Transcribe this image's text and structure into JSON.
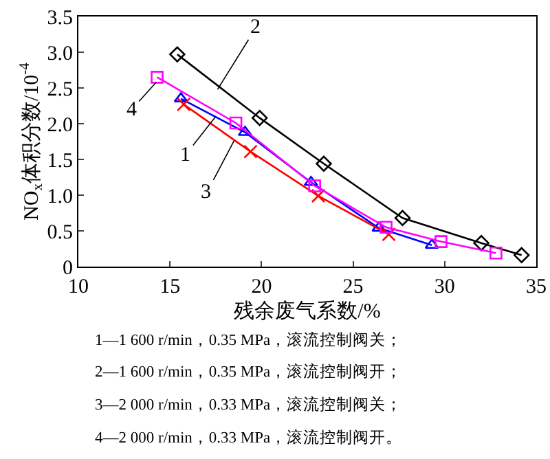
{
  "chart_data": {
    "type": "line",
    "xlabel": "残余废气系数/%",
    "ylabel": "NO$_{x}$体积分数/10$^{-4}$",
    "xlim": [
      10,
      35
    ],
    "xticks": [
      10,
      15,
      20,
      25,
      30,
      35
    ],
    "ylim": [
      0,
      3.5
    ],
    "yticks": [
      0,
      {
        "value": 0.5,
        "label": "0.5"
      },
      {
        "value": 1,
        "label": "1.0"
      },
      {
        "value": 1.5,
        "label": "1.5"
      },
      {
        "value": 2,
        "label": "2.0"
      },
      {
        "value": 2.5,
        "label": "2.5"
      },
      {
        "value": 3,
        "label": "3.0"
      },
      {
        "value": 3.5,
        "label": "3.5"
      }
    ],
    "grid": false,
    "series": [
      {
        "color": "#0000ff",
        "marker": "triangle",
        "x": [
          15.6,
          19.1,
          22.7,
          26.4,
          29.3
        ],
        "values": [
          2.35,
          1.88,
          1.18,
          0.54,
          0.3
        ]
      },
      {
        "color": "#000000",
        "marker": "diamond",
        "x": [
          15.4,
          19.9,
          23.4,
          27.7,
          32.0,
          34.2
        ],
        "values": [
          2.97,
          2.08,
          1.44,
          0.68,
          0.33,
          0.16
        ]
      },
      {
        "color": "#ff0000",
        "marker": "cross",
        "x": [
          15.75,
          19.4,
          23.1,
          26.95
        ],
        "values": [
          2.27,
          1.61,
          0.99,
          0.45
        ]
      },
      {
        "color": "#ff00ff",
        "marker": "square",
        "x": [
          14.3,
          18.6,
          22.9,
          26.8,
          29.8,
          32.8
        ],
        "values": [
          2.65,
          2.01,
          1.13,
          0.55,
          0.35,
          0.19
        ]
      }
    ],
    "annotations": [
      {
        "text": "1",
        "x": 17.5,
        "y": 2.1
      },
      {
        "text": "2",
        "x": 17.6,
        "y": 2.48
      },
      {
        "text": "3",
        "x": 18.5,
        "y": 1.76
      },
      {
        "text": "4",
        "x": 14.25,
        "y": 2.58
      },
      "1—1 600 r/min，0.35 MPa，滚流控制阀关；",
      "2—1 600 r/min，0.35 MPa，滚流控制阀开；",
      "3—2 000 r/min，0.33 MPa，滚流控制阀关；",
      "4—2 000 r/min，0.33 MPa，滚流控制阀开。"
    ]
  }
}
